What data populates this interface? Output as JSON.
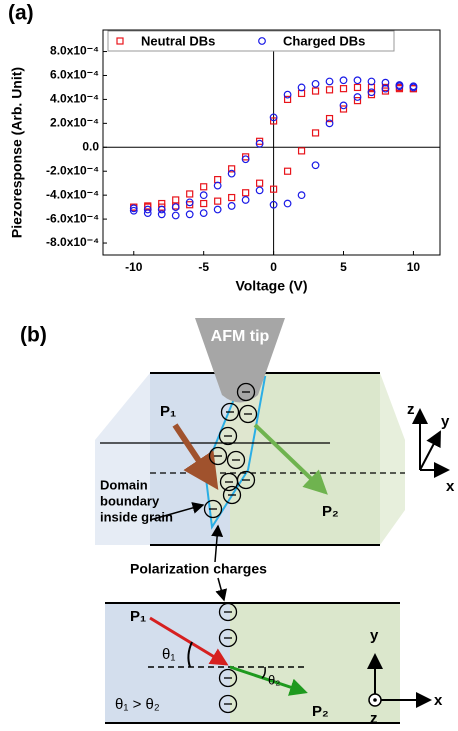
{
  "chart_data": {
    "type": "scatter",
    "annotations": [
      "(a)"
    ],
    "x_label": "Voltage (V)",
    "y_label": "Piezoresponse (Arb. Unit)",
    "x": [
      10,
      9,
      8,
      7,
      6,
      5,
      4,
      3,
      2,
      1,
      0,
      -1,
      -2,
      -3,
      -4,
      -5,
      -6,
      -7,
      -8,
      -9,
      -10,
      -10,
      -9,
      -8,
      -7,
      -6,
      -5,
      -4,
      -3,
      -2,
      -1,
      0,
      1,
      2,
      3,
      4,
      5,
      6,
      7,
      8,
      9,
      10
    ],
    "series": [
      {
        "name": "Neutral DBs",
        "color": "#e8141b",
        "marker": "square",
        "values": [
          0.00049,
          0.0005,
          0.0005,
          0.0005,
          0.0005,
          0.00049,
          0.00048,
          0.00047,
          0.00045,
          0.0004,
          0.00022,
          5e-05,
          -8e-05,
          -0.00018,
          -0.00027,
          -0.00033,
          -0.00039,
          -0.00044,
          -0.00047,
          -0.00049,
          -0.0005,
          -0.0005,
          -0.0005,
          -0.0005,
          -0.00049,
          -0.00048,
          -0.00047,
          -0.00045,
          -0.00042,
          -0.00038,
          -0.0003,
          -0.00035,
          -0.0002,
          -3e-05,
          0.00012,
          0.00024,
          0.00032,
          0.00039,
          0.00044,
          0.00047,
          0.00049,
          0.00049
        ]
      },
      {
        "name": "Charged DBs",
        "color": "#1a1ae6",
        "marker": "circle",
        "values": [
          0.0005,
          0.00052,
          0.00054,
          0.00055,
          0.00056,
          0.00056,
          0.00055,
          0.00053,
          0.0005,
          0.00044,
          0.00025,
          3e-05,
          -0.0001,
          -0.00022,
          -0.00032,
          -0.0004,
          -0.00046,
          -0.0005,
          -0.00052,
          -0.00052,
          -0.00051,
          -0.00053,
          -0.00055,
          -0.00056,
          -0.00057,
          -0.00056,
          -0.00055,
          -0.00052,
          -0.00049,
          -0.00044,
          -0.00036,
          -0.00048,
          -0.00047,
          -0.0004,
          -0.00015,
          0.0002,
          0.00035,
          0.00042,
          0.00046,
          0.00049,
          0.00051,
          0.00051
        ]
      }
    ],
    "xlim": [
      -12.2,
      11.9
    ],
    "ylim": [
      -0.0009,
      0.00098
    ],
    "xticks": [
      -10,
      -5,
      0,
      5,
      10
    ],
    "yticks": [
      {
        "value": 0.0008,
        "label": "8.0x10⁻⁴"
      },
      {
        "value": 0.0006,
        "label": "6.0x10⁻⁴"
      },
      {
        "value": 0.0004,
        "label": "4.0x10⁻⁴"
      },
      {
        "value": 0.0002,
        "label": "2.0x10⁻⁴"
      },
      {
        "value": 0,
        "label": "0.0"
      },
      {
        "value": -0.0002,
        "label": "-2.0x10⁻⁴"
      },
      {
        "value": -0.0004,
        "label": "-4.0x10⁻⁴"
      },
      {
        "value": -0.0006,
        "label": "-6.0x10⁻⁴"
      },
      {
        "value": -0.0008,
        "label": "-8.0x10⁻⁴"
      }
    ],
    "legend": "top"
  },
  "diagram": {
    "panel_label": "(b)",
    "tip": "AFM tip",
    "p1": "P₁",
    "p2": "P₂",
    "boundary_lines": [
      "Domain",
      "boundary",
      "inside grain"
    ],
    "charges": "Polarization charges",
    "axes_3d": {
      "z": "z",
      "y": "y",
      "x": "x"
    },
    "bottom": {
      "p1": "P₁",
      "p2": "P₂",
      "theta1": "θ₁",
      "theta2": "θ₂",
      "relation": "θ₁ > θ₂",
      "axes": {
        "y": "y",
        "x": "x",
        "z": "z"
      }
    }
  }
}
